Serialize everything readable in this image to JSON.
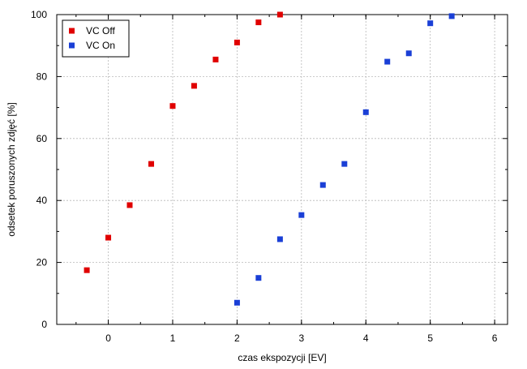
{
  "chart_data": {
    "type": "scatter",
    "xlabel": "czas ekspozycji [EV]",
    "ylabel": "odsetek poruszonych zdjęć [%]",
    "xlim": [
      -0.8,
      6.2
    ],
    "ylim": [
      0,
      100
    ],
    "x_ticks": [
      0,
      1,
      2,
      3,
      4,
      5,
      6
    ],
    "y_ticks": [
      0,
      20,
      40,
      60,
      80,
      100
    ],
    "grid": true,
    "legend_position": "top-left",
    "series": [
      {
        "name": "VC Off",
        "color": "#e00000",
        "marker": "square",
        "x": [
          -0.333,
          0,
          0.333,
          0.667,
          1,
          1.333,
          1.667,
          2,
          2.333,
          2.667
        ],
        "y": [
          17.5,
          28,
          38.5,
          51.8,
          70.5,
          77,
          85.5,
          91,
          97.5,
          100
        ]
      },
      {
        "name": "VC On",
        "color": "#1a3fd6",
        "marker": "square",
        "x": [
          2,
          2.333,
          2.667,
          3,
          3.333,
          3.667,
          4,
          4.333,
          4.667,
          5,
          5.333
        ],
        "y": [
          7,
          15,
          27.5,
          35.3,
          45,
          51.8,
          68.5,
          84.8,
          87.5,
          97.2,
          99.5
        ]
      }
    ]
  }
}
